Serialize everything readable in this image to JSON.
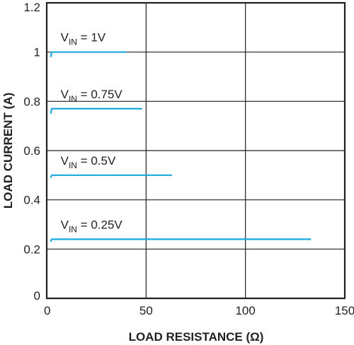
{
  "chart_data": {
    "type": "line",
    "xlabel": "LOAD RESISTANCE (Ω)",
    "ylabel": "LOAD CURRENT (A)",
    "xlim": [
      0,
      150
    ],
    "ylim": [
      0,
      1.2
    ],
    "x_ticks": [
      "0",
      "50",
      "100",
      "150"
    ],
    "y_ticks": [
      "0",
      "0.2",
      "0.4",
      "0.6",
      "0.8",
      "1",
      "1.2"
    ],
    "grid": true,
    "line_color": "#1aa7dc",
    "series": [
      {
        "label_main": "V",
        "label_sub": "IN",
        "label_rest": " = 1V",
        "x": [
          2,
          2.5,
          40
        ],
        "y": [
          0.98,
          1.0,
          1.0
        ]
      },
      {
        "label_main": "V",
        "label_sub": "IN",
        "label_rest": " = 0.75V",
        "x": [
          2,
          2.5,
          48
        ],
        "y": [
          0.75,
          0.77,
          0.77
        ]
      },
      {
        "label_main": "V",
        "label_sub": "IN",
        "label_rest": " = 0.5V",
        "x": [
          2,
          2.5,
          63
        ],
        "y": [
          0.49,
          0.5,
          0.5
        ]
      },
      {
        "label_main": "V",
        "label_sub": "IN",
        "label_rest": " = 0.25V",
        "x": [
          2,
          2.5,
          133
        ],
        "y": [
          0.23,
          0.24,
          0.24
        ]
      }
    ]
  }
}
